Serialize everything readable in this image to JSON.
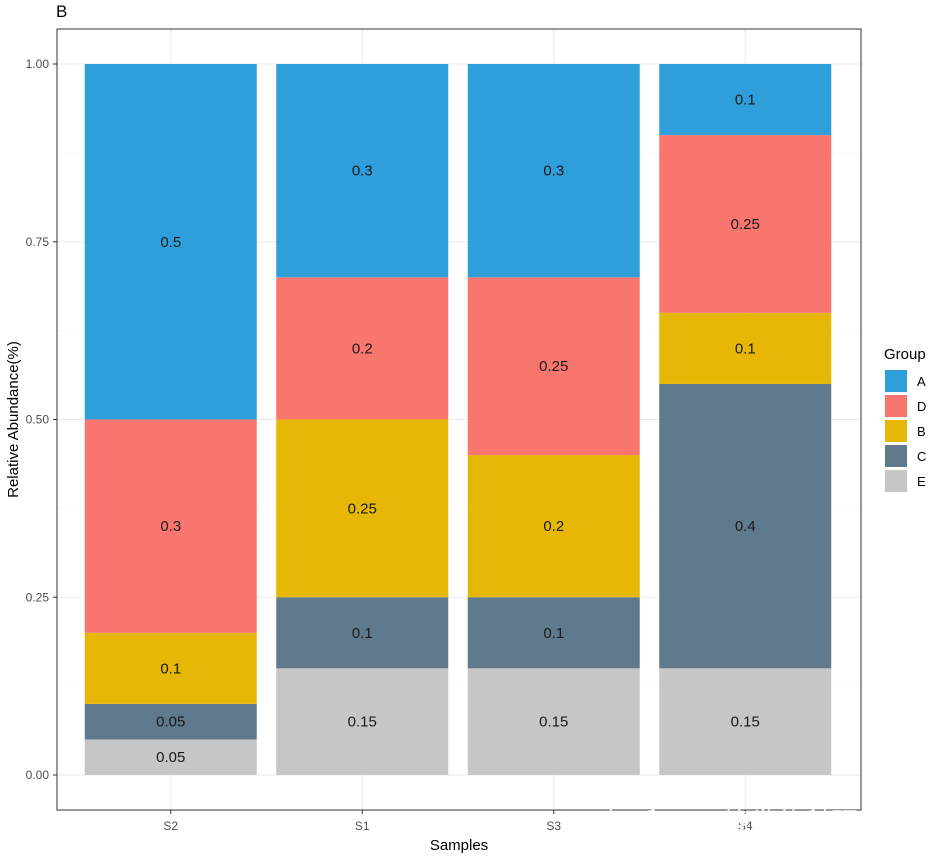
{
  "panel_tag": "B",
  "watermark": "知乎 @不搞发的科研小生",
  "chart_data": {
    "type": "bar",
    "stacked": true,
    "categories": [
      "S2",
      "S1",
      "S3",
      "S4"
    ],
    "series": [
      {
        "name": "E",
        "color": "#C6C6C6",
        "values": [
          0.05,
          0.15,
          0.15,
          0.15
        ]
      },
      {
        "name": "C",
        "color": "#5F7A8C",
        "values": [
          0.05,
          0.1,
          0.1,
          0.4
        ]
      },
      {
        "name": "B",
        "color": "#E6B707",
        "values": [
          0.1,
          0.25,
          0.2,
          0.1
        ]
      },
      {
        "name": "D",
        "color": "#F8766D",
        "values": [
          0.3,
          0.2,
          0.25,
          0.25
        ]
      },
      {
        "name": "A",
        "color": "#2F9FDC",
        "values": [
          0.5,
          0.3,
          0.3,
          0.1
        ]
      }
    ],
    "xlabel": "Samples",
    "ylabel": "Relative Abundance(%)",
    "ylim": [
      0,
      1
    ],
    "yticks": [
      "0.00",
      "0.25",
      "0.50",
      "0.75",
      "1.00"
    ],
    "legend": {
      "title": "Group",
      "order": [
        "A",
        "D",
        "B",
        "C",
        "E"
      ],
      "position": "right"
    },
    "grid": true
  }
}
